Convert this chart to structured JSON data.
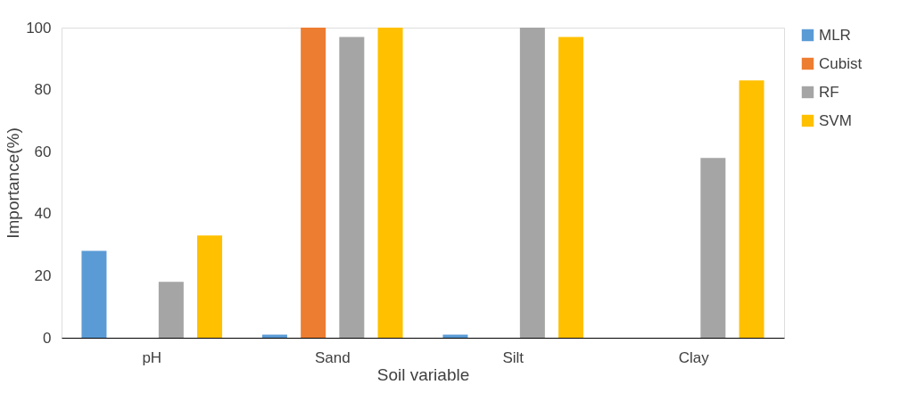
{
  "chart_data": {
    "type": "bar",
    "xlabel": "Soil variable",
    "ylabel": "Importance(%)",
    "categories": [
      "pH",
      "Sand",
      "Silt",
      "Clay"
    ],
    "series": [
      {
        "name": "MLR",
        "color": "#5b9bd5",
        "values": [
          28,
          1,
          1,
          0
        ]
      },
      {
        "name": "Cubist",
        "color": "#ed7d31",
        "values": [
          0,
          100,
          0,
          0
        ]
      },
      {
        "name": "RF",
        "color": "#a5a5a5",
        "values": [
          18,
          97,
          100,
          58
        ]
      },
      {
        "name": "SVM",
        "color": "#ffc000",
        "values": [
          33,
          100,
          97,
          83
        ]
      }
    ],
    "ylim": [
      0,
      100
    ],
    "yticks": [
      0,
      20,
      40,
      60,
      80,
      100
    ],
    "grid": false,
    "legend": "right"
  }
}
